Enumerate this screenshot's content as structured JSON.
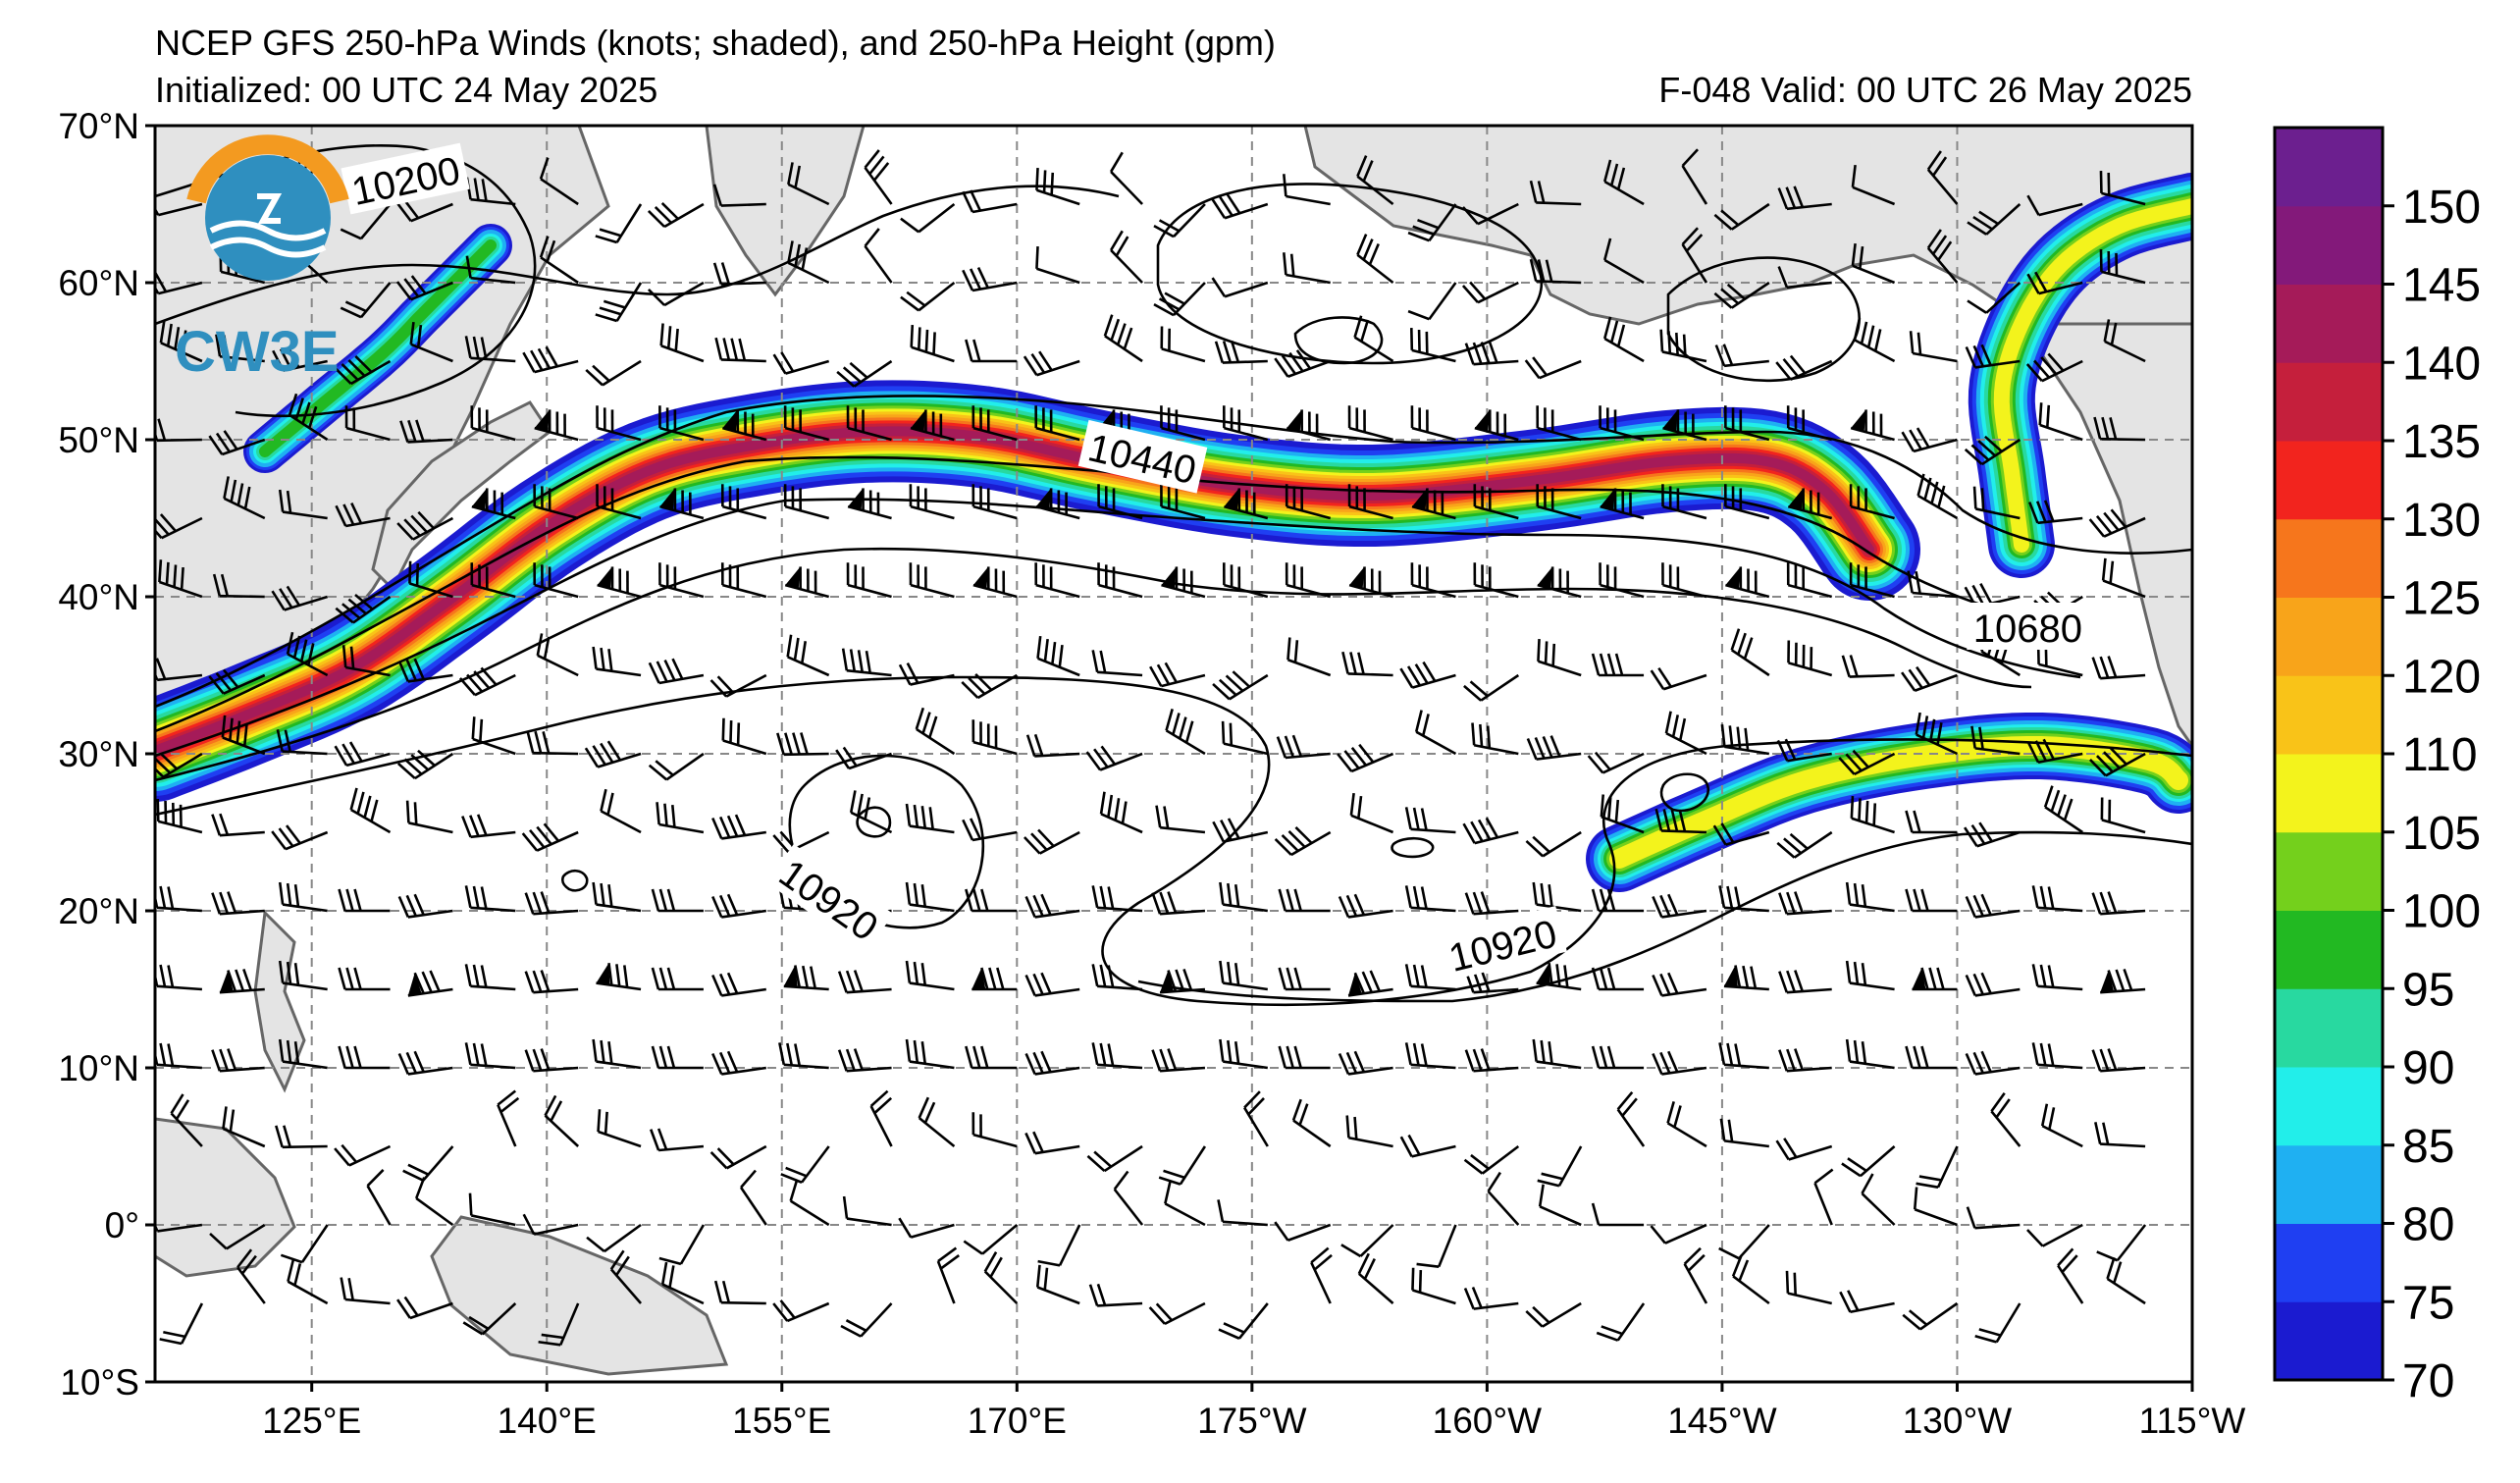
{
  "header": {
    "title": "NCEP GFS 250-hPa Winds (knots; shaded), and 250-hPa Height (gpm)",
    "initialized": "Initialized: 00 UTC 24 May 2025",
    "valid": "F-048  Valid: 00 UTC 26 May 2025"
  },
  "logo": {
    "text": "CW3E",
    "icon": "cw3e-sun-wave-logo"
  },
  "map": {
    "lon_range": [
      115,
      245
    ],
    "lat_range": [
      -10,
      70
    ],
    "lat_ticks": [
      {
        "value": 70,
        "label": "70°N"
      },
      {
        "value": 60,
        "label": "60°N"
      },
      {
        "value": 50,
        "label": "50°N"
      },
      {
        "value": 40,
        "label": "40°N"
      },
      {
        "value": 30,
        "label": "30°N"
      },
      {
        "value": 20,
        "label": "20°N"
      },
      {
        "value": 10,
        "label": "10°N"
      },
      {
        "value": 0,
        "label": "0°"
      },
      {
        "value": -10,
        "label": "10°S"
      }
    ],
    "lon_ticks": [
      {
        "value": 125,
        "label": "125°E"
      },
      {
        "value": 140,
        "label": "140°E"
      },
      {
        "value": 155,
        "label": "155°E"
      },
      {
        "value": 170,
        "label": "170°E"
      },
      {
        "value": 185,
        "label": "175°W"
      },
      {
        "value": 200,
        "label": "160°W"
      },
      {
        "value": 215,
        "label": "145°W"
      },
      {
        "value": 230,
        "label": "130°W"
      },
      {
        "value": 245,
        "label": "115°W"
      }
    ],
    "gridlines": "dashed",
    "contour_labels": [
      {
        "text": "10200",
        "lon": 131,
        "lat": 66.5,
        "angle": -12
      },
      {
        "text": "10440",
        "lon": 178,
        "lat": 48.8,
        "angle": 13
      },
      {
        "text": "10680",
        "lon": 234.5,
        "lat": 38,
        "angle": 0
      },
      {
        "text": "10920",
        "lon": 158,
        "lat": 20.7,
        "angle": 35
      },
      {
        "text": "10920",
        "lon": 201,
        "lat": 17.8,
        "angle": -14
      }
    ]
  },
  "colorbar": {
    "levels": [
      70,
      75,
      80,
      85,
      90,
      95,
      100,
      105,
      110,
      120,
      125,
      130,
      135,
      140,
      145,
      150
    ],
    "colors": [
      "#1b1bd0",
      "#1f3ff2",
      "#1fb0f2",
      "#22eeea",
      "#28d9a0",
      "#22b922",
      "#74d01c",
      "#f3f31c",
      "#f9c318",
      "#f8a41a",
      "#f6761c",
      "#f2241e",
      "#c51f3c",
      "#a51b59",
      "#83197a",
      "#6c1f8f"
    ],
    "labels": [
      "70",
      "75",
      "80",
      "85",
      "90",
      "95",
      "100",
      "105",
      "110",
      "120",
      "125",
      "130",
      "135",
      "140",
      "145",
      "150"
    ]
  }
}
